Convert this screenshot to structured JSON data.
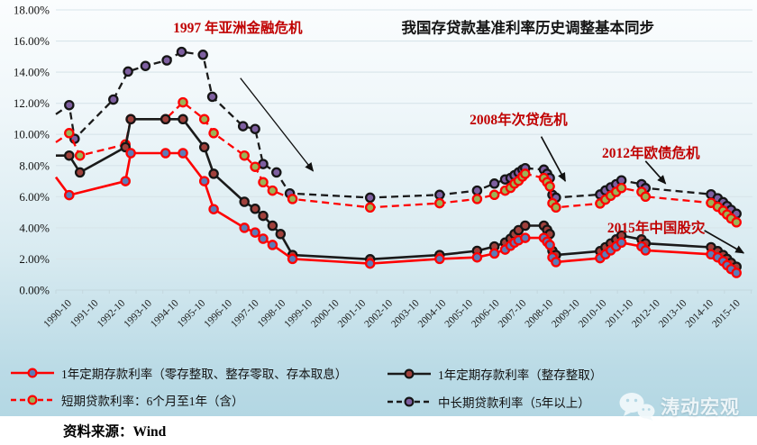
{
  "title": "我国存贷款基准利率历史调整基本同步",
  "source_note": "资料来源：Wind",
  "watermark_text": "涛动宏观",
  "colors": {
    "red_line": "#FE0101",
    "black_line": "#1A1A1A",
    "annotation_red": "#C00000",
    "blue_marker": "#5B7CB8",
    "green_marker": "#9CB356",
    "darkred_marker": "#A0413C",
    "purple_marker": "#7E5FA0",
    "grid": "#D8E5EA",
    "axis": "#C4D8DF"
  },
  "chart_data": {
    "type": "line",
    "title": "我国存贷款基准利率历史调整基本同步",
    "xlabel": "",
    "ylabel": "",
    "ylim": [
      0,
      18
    ],
    "y_tick_step": 2,
    "y_tick_suffix": "%",
    "grid": "horizontal",
    "legend_position": "bottom",
    "x_range": [
      1990.25,
      2016.3
    ],
    "x_categories": [
      "1990-10",
      "1991-10",
      "1992-10",
      "1993-10",
      "1994-10",
      "1995-10",
      "1996-10",
      "1997-10",
      "1998-10",
      "1999-10",
      "2000-10",
      "2001-10",
      "2002-10",
      "2003-10",
      "2004-10",
      "2005-10",
      "2006-10",
      "2007-10",
      "2008-10",
      "2009-10",
      "2010-10",
      "2011-10",
      "2012-10",
      "2013-10",
      "2014-10",
      "2015-10"
    ],
    "series": [
      {
        "name": "中长期贷款利率（5年以上）",
        "line_color": "#1A1A1A",
        "line_style": "dashed",
        "marker_fill": "#7E5FA0",
        "marker_edge": "#151515",
        "points": [
          [
            1990.25,
            11.3,
            0
          ],
          [
            1990.75,
            11.88
          ],
          [
            1990.95,
            9.72
          ],
          [
            1992.4,
            12.24
          ],
          [
            1992.95,
            14.04
          ],
          [
            1993.6,
            14.4
          ],
          [
            1994.4,
            14.76
          ],
          [
            1994.95,
            15.3
          ],
          [
            1995.75,
            15.12
          ],
          [
            1996.1,
            12.42
          ],
          [
            1997.25,
            10.53
          ],
          [
            1997.7,
            10.35
          ],
          [
            1998.0,
            8.1
          ],
          [
            1998.5,
            7.56
          ],
          [
            1999.0,
            6.21
          ],
          [
            2002.0,
            5.94
          ],
          [
            2004.6,
            6.12
          ],
          [
            2006.0,
            6.39
          ],
          [
            2006.65,
            6.84
          ],
          [
            2007.05,
            7.11
          ],
          [
            2007.25,
            7.2
          ],
          [
            2007.4,
            7.38
          ],
          [
            2007.55,
            7.56
          ],
          [
            2007.7,
            7.74
          ],
          [
            2007.8,
            7.83
          ],
          [
            2008.5,
            7.74
          ],
          [
            2008.62,
            7.47
          ],
          [
            2008.72,
            7.2
          ],
          [
            2008.82,
            6.12
          ],
          [
            2008.95,
            5.94
          ],
          [
            2010.6,
            6.14
          ],
          [
            2010.8,
            6.4
          ],
          [
            2011.0,
            6.6
          ],
          [
            2011.2,
            6.8
          ],
          [
            2011.4,
            7.05
          ],
          [
            2012.15,
            6.8
          ],
          [
            2012.3,
            6.55
          ],
          [
            2014.75,
            6.15
          ],
          [
            2015.0,
            5.9
          ],
          [
            2015.2,
            5.65
          ],
          [
            2015.35,
            5.4
          ],
          [
            2015.5,
            5.15
          ],
          [
            2015.7,
            4.9
          ]
        ]
      },
      {
        "name": "短期贷款利率：6个月至1年（含）",
        "line_color": "#FE0101",
        "line_style": "dashed",
        "marker_fill": "#9CB356",
        "marker_edge": "#FE0101",
        "points": [
          [
            1990.25,
            9.5,
            0
          ],
          [
            1990.75,
            10.08
          ],
          [
            1991.15,
            8.64
          ],
          [
            1992.85,
            9.36
          ],
          [
            1993.05,
            10.98
          ],
          [
            1994.35,
            10.98
          ],
          [
            1995.0,
            12.06
          ],
          [
            1995.8,
            10.98
          ],
          [
            1996.15,
            10.08
          ],
          [
            1997.3,
            8.64
          ],
          [
            1997.7,
            7.92
          ],
          [
            1998.0,
            6.93
          ],
          [
            1998.35,
            6.39
          ],
          [
            1999.1,
            5.85
          ],
          [
            2002.0,
            5.31
          ],
          [
            2004.6,
            5.58
          ],
          [
            2006.0,
            5.85
          ],
          [
            2006.65,
            6.12
          ],
          [
            2007.05,
            6.39
          ],
          [
            2007.25,
            6.57
          ],
          [
            2007.4,
            6.84
          ],
          [
            2007.55,
            7.02
          ],
          [
            2007.7,
            7.29
          ],
          [
            2007.8,
            7.47
          ],
          [
            2008.5,
            7.2
          ],
          [
            2008.62,
            6.93
          ],
          [
            2008.72,
            6.66
          ],
          [
            2008.82,
            5.58
          ],
          [
            2008.95,
            5.31
          ],
          [
            2010.6,
            5.56
          ],
          [
            2010.8,
            5.81
          ],
          [
            2011.0,
            6.06
          ],
          [
            2011.2,
            6.31
          ],
          [
            2011.4,
            6.56
          ],
          [
            2012.15,
            6.31
          ],
          [
            2012.3,
            6.0
          ],
          [
            2014.75,
            5.6
          ],
          [
            2015.0,
            5.35
          ],
          [
            2015.2,
            5.1
          ],
          [
            2015.35,
            4.85
          ],
          [
            2015.5,
            4.6
          ],
          [
            2015.7,
            4.35
          ]
        ]
      },
      {
        "name": "1年定期存款利率（整存整取）",
        "line_color": "#1A1A1A",
        "line_style": "solid",
        "marker_fill": "#A0413C",
        "marker_edge": "#151515",
        "points": [
          [
            1990.25,
            8.64,
            0
          ],
          [
            1990.75,
            8.64
          ],
          [
            1991.15,
            7.56
          ],
          [
            1992.85,
            9.18
          ],
          [
            1993.05,
            10.98
          ],
          [
            1994.35,
            10.98
          ],
          [
            1995.0,
            10.98
          ],
          [
            1995.8,
            9.18
          ],
          [
            1996.15,
            7.47
          ],
          [
            1997.3,
            5.67
          ],
          [
            1997.7,
            5.22
          ],
          [
            1998.0,
            4.77
          ],
          [
            1998.35,
            4.14
          ],
          [
            1998.65,
            3.6
          ],
          [
            1999.1,
            2.25
          ],
          [
            2002.0,
            1.98
          ],
          [
            2004.6,
            2.25
          ],
          [
            2006.0,
            2.52
          ],
          [
            2006.65,
            2.8
          ],
          [
            2007.05,
            3.05
          ],
          [
            2007.25,
            3.3
          ],
          [
            2007.4,
            3.6
          ],
          [
            2007.55,
            3.85
          ],
          [
            2007.8,
            4.14
          ],
          [
            2008.5,
            4.14
          ],
          [
            2008.62,
            3.87
          ],
          [
            2008.72,
            3.6
          ],
          [
            2008.82,
            2.52
          ],
          [
            2008.95,
            2.25
          ],
          [
            2010.6,
            2.5
          ],
          [
            2010.8,
            2.75
          ],
          [
            2011.0,
            3.0
          ],
          [
            2011.2,
            3.25
          ],
          [
            2011.4,
            3.5
          ],
          [
            2012.15,
            3.25
          ],
          [
            2012.3,
            3.0
          ],
          [
            2014.75,
            2.75
          ],
          [
            2015.0,
            2.5
          ],
          [
            2015.2,
            2.25
          ],
          [
            2015.35,
            2.0
          ],
          [
            2015.5,
            1.75
          ],
          [
            2015.7,
            1.5
          ]
        ]
      },
      {
        "name": "1年定期存款利率（零存整取、整存零取、存本取息）",
        "line_color": "#FE0101",
        "line_style": "solid",
        "marker_fill": "#5B7CB8",
        "marker_edge": "#FE0101",
        "points": [
          [
            1990.25,
            7.25,
            0
          ],
          [
            1990.75,
            6.1
          ],
          [
            1992.85,
            7.0
          ],
          [
            1993.05,
            8.8
          ],
          [
            1994.35,
            8.8
          ],
          [
            1995.0,
            8.8
          ],
          [
            1995.8,
            7.0
          ],
          [
            1996.15,
            5.2
          ],
          [
            1997.3,
            4.0
          ],
          [
            1997.7,
            3.7
          ],
          [
            1998.0,
            3.3
          ],
          [
            1998.35,
            2.9
          ],
          [
            1999.1,
            2.0
          ],
          [
            2002.0,
            1.7
          ],
          [
            2004.6,
            2.0
          ],
          [
            2006.0,
            2.1
          ],
          [
            2006.65,
            2.35
          ],
          [
            2007.05,
            2.6
          ],
          [
            2007.25,
            2.85
          ],
          [
            2007.4,
            3.05
          ],
          [
            2007.55,
            3.2
          ],
          [
            2007.8,
            3.35
          ],
          [
            2008.5,
            3.35
          ],
          [
            2008.62,
            3.1
          ],
          [
            2008.72,
            2.9
          ],
          [
            2008.82,
            2.1
          ],
          [
            2008.95,
            1.8
          ],
          [
            2010.6,
            2.05
          ],
          [
            2010.8,
            2.3
          ],
          [
            2011.0,
            2.55
          ],
          [
            2011.2,
            2.8
          ],
          [
            2011.4,
            3.05
          ],
          [
            2012.15,
            2.8
          ],
          [
            2012.3,
            2.55
          ],
          [
            2014.75,
            2.3
          ],
          [
            2015.0,
            2.1
          ],
          [
            2015.2,
            1.85
          ],
          [
            2015.35,
            1.6
          ],
          [
            2015.5,
            1.35
          ],
          [
            2015.7,
            1.1
          ]
        ]
      }
    ],
    "annotations": [
      {
        "id": "crisis-1997",
        "text": "1997 年亚洲金融危机",
        "color": "#C00000",
        "x": 1997.05,
        "y": 16.85,
        "size": 15.5,
        "bold": true
      },
      {
        "id": "chart-title",
        "text": "我国存贷款基准利率历史调整基本同步",
        "color": "#151515",
        "x": 2007.9,
        "y": 16.8,
        "size": 16.5,
        "bold": true
      },
      {
        "id": "crisis-2008",
        "text": "2008年次贷危机",
        "color": "#C00000",
        "x": 2007.55,
        "y": 10.95,
        "size": 15.5,
        "bold": true
      },
      {
        "id": "crisis-2012",
        "text": "2012年欧债危机",
        "color": "#C00000",
        "x": 2012.5,
        "y": 8.8,
        "size": 15.5,
        "bold": true
      },
      {
        "id": "crisis-2015",
        "text": "2015年中国股灾",
        "color": "#C00000",
        "x": 2012.7,
        "y": 4.0,
        "size": 15.5,
        "bold": true
      }
    ],
    "arrows": [
      {
        "id": "arrow-1997",
        "from": [
          1997.15,
          13.62
        ],
        "to": [
          1999.87,
          7.65
        ],
        "width": 1.3
      },
      {
        "id": "arrow-2008",
        "from": [
          2008.4,
          9.86
        ],
        "to": [
          2009.3,
          7.0
        ],
        "width": 1.7
      },
      {
        "id": "arrow-2012",
        "from": [
          2012.3,
          8.29
        ],
        "to": [
          2013.05,
          6.84
        ],
        "width": 1.7
      },
      {
        "id": "arrow-2015",
        "from": [
          2014.5,
          3.83
        ],
        "to": [
          2015.97,
          2.38
        ],
        "width": 1.7
      }
    ]
  },
  "legend": {
    "items": [
      {
        "series": 3
      },
      {
        "series": 1
      },
      {
        "series": 2
      },
      {
        "series": 0
      }
    ]
  }
}
